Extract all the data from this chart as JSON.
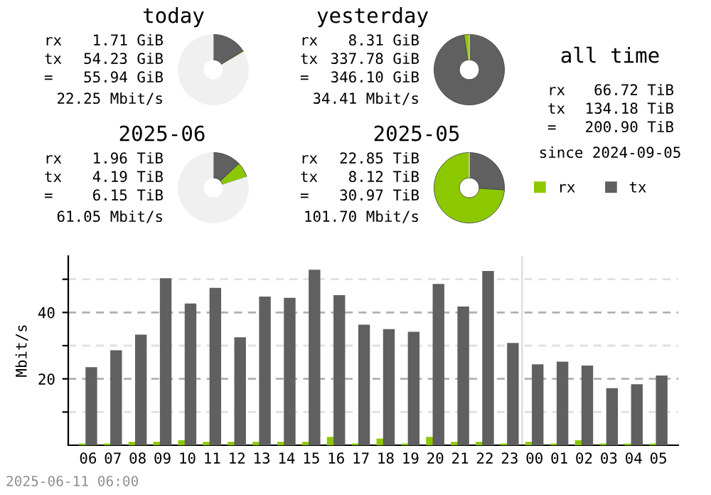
{
  "chart_data": [
    {
      "type": "donut",
      "title": "today",
      "annotations": [
        "rx",
        "1.71 GiB",
        "tx",
        "54.23 GiB",
        "=",
        "55.94 GiB",
        "22.25 Mbit/s"
      ],
      "categories": [
        null,
        null,
        null
      ],
      "values": [
        16,
        0.5,
        83.5
      ],
      "colors": [
        "#606060",
        "#8cc800",
        "#f0f0f0"
      ]
    },
    {
      "type": "donut",
      "title": "yesterday",
      "annotations": [
        "rx",
        "8.31 GiB",
        "tx",
        "337.78 GiB",
        "=",
        "346.10 GiB",
        "34.41 Mbit/s"
      ],
      "categories": [
        null,
        null,
        null
      ],
      "values": [
        97.6,
        2.4,
        0
      ],
      "colors": [
        "#606060",
        "#8cc800",
        "#f0f0f0"
      ]
    },
    {
      "type": "other",
      "title": "all time",
      "annotations": [
        "rx",
        "66.72 TiB",
        "tx",
        "134.18 TiB",
        "=",
        "200.90 TiB",
        "since 2024-09-05"
      ]
    },
    {
      "type": "donut",
      "title": "2025-06",
      "annotations": [
        "rx",
        "1.96 TiB",
        "tx",
        "4.19 TiB",
        "=",
        "6.15 TiB",
        "61.05 Mbit/s"
      ],
      "categories": [
        null,
        null,
        null
      ],
      "values": [
        13,
        7,
        80
      ],
      "colors": [
        "#606060",
        "#8cc800",
        "#f0f0f0"
      ]
    },
    {
      "type": "donut",
      "title": "2025-05",
      "annotations": [
        "rx",
        "22.85 TiB",
        "tx",
        "8.12 TiB",
        "=",
        "30.97 TiB",
        "101.70 Mbit/s"
      ],
      "categories": [
        null,
        null,
        null
      ],
      "values": [
        26,
        74,
        0
      ],
      "colors": [
        "#606060",
        "#8cc800",
        "#f0f0f0"
      ]
    },
    {
      "type": "bar",
      "ylabel": "Mbit/s",
      "annotations": [
        "2025-06-11 06:00"
      ],
      "categories": [
        "06",
        "07",
        "08",
        "09",
        "10",
        "11",
        "12",
        "13",
        "14",
        "15",
        "16",
        "17",
        "18",
        "19",
        "20",
        "21",
        "22",
        "23",
        "00",
        "01",
        "02",
        "03",
        "04",
        "05"
      ],
      "series": [
        {
          "name": "rx",
          "color": "#8cc800",
          "values": [
            0.5,
            0.5,
            1.0,
            1.0,
            1.5,
            1.0,
            1.0,
            1.0,
            1.0,
            1.0,
            2.5,
            0.5,
            2.0,
            0.5,
            2.5,
            1.0,
            1.0,
            0.5,
            1.0,
            0.5,
            1.5,
            0.5,
            0.5,
            0.5
          ]
        },
        {
          "name": "tx",
          "color": "#606060",
          "values": [
            23.5,
            28.6,
            33.3,
            50.3,
            42.7,
            47.4,
            32.5,
            44.8,
            44.4,
            52.9,
            45.2,
            36.3,
            35.0,
            34.2,
            48.6,
            41.8,
            52.5,
            30.8,
            24.4,
            25.2,
            24.0,
            17.2,
            18.4,
            21.0
          ]
        }
      ],
      "ylim": [
        0,
        57
      ],
      "yticks": [
        {
          "value": 10,
          "label": null
        },
        20,
        {
          "value": 30,
          "label": null
        },
        40,
        {
          "value": 50,
          "label": null
        }
      ],
      "grid": "y",
      "legend": "top right",
      "ref_lines": [
        {
          "axis": "x",
          "value": "00",
          "color": "#e0e0e0"
        }
      ]
    }
  ]
}
